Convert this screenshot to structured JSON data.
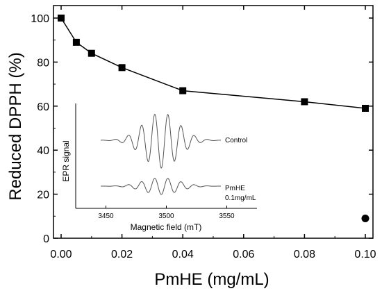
{
  "chart_data": [
    {
      "type": "line",
      "xlabel": "PmHE (mg/mL)",
      "ylabel": "Reduced DPPH (%)",
      "xlim": [
        0,
        0.1
      ],
      "ylim": [
        0,
        105
      ],
      "xticks": [
        "0.00",
        "0.02",
        "0.04",
        "0.06",
        "0.08",
        "0.10"
      ],
      "yticks": [
        "0",
        "20",
        "40",
        "60",
        "80",
        "100"
      ],
      "series": [
        {
          "marker": "square",
          "x": [
            0.0,
            0.005,
            0.01,
            0.02,
            0.04,
            0.08,
            0.1
          ],
          "y": [
            100,
            89,
            84,
            77.5,
            67,
            62,
            59
          ]
        },
        {
          "marker": "circle",
          "x": [
            0.1
          ],
          "y": [
            9
          ]
        }
      ],
      "grid": false,
      "legend": false
    },
    {
      "type": "line",
      "xlabel": "Magnetic field (mT)",
      "ylabel": "EPR signal",
      "xticks": [
        "3450",
        "3500",
        "3550"
      ],
      "xlim": [
        3425,
        3575
      ],
      "series_labels": [
        "Control",
        "PmHE",
        "0.1mg/mL"
      ]
    }
  ]
}
